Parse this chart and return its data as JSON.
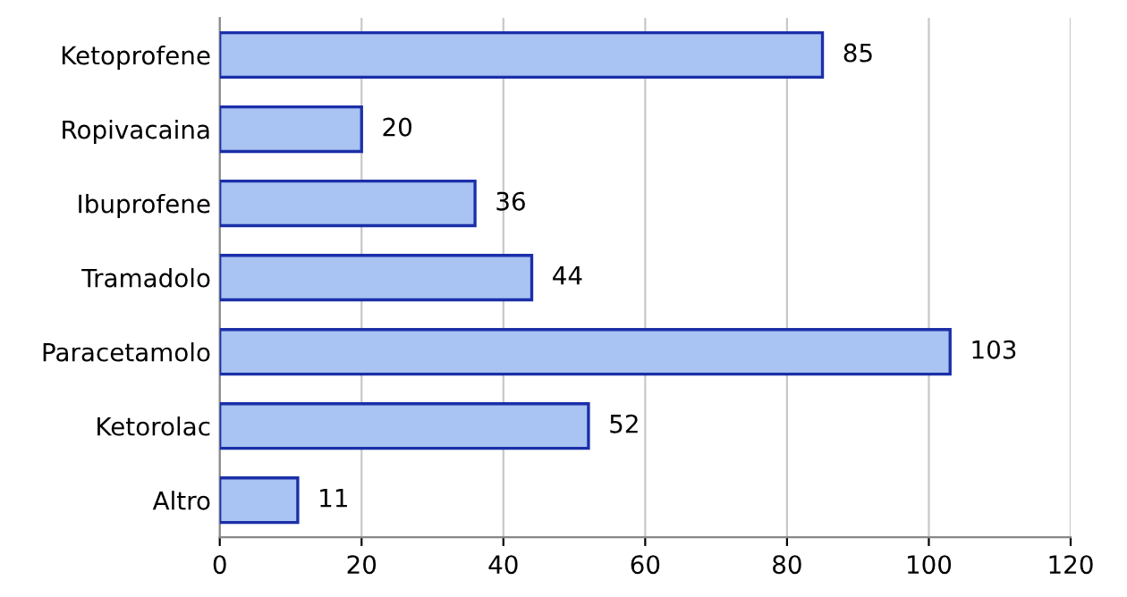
{
  "chart_data": {
    "type": "bar",
    "orientation": "horizontal",
    "categories": [
      "Ketoprofene",
      "Ropivacaina",
      "Ibuprofene",
      "Tramadolo",
      "Paracetamolo",
      "Ketorolac",
      "Altro"
    ],
    "values": [
      85,
      20,
      36,
      44,
      103,
      52,
      11
    ],
    "color": "#a9c3f2",
    "xlim": [
      0,
      120
    ],
    "xticks": [
      0,
      20,
      40,
      60,
      80,
      100,
      120
    ],
    "grid": "x",
    "data_labels": true
  }
}
